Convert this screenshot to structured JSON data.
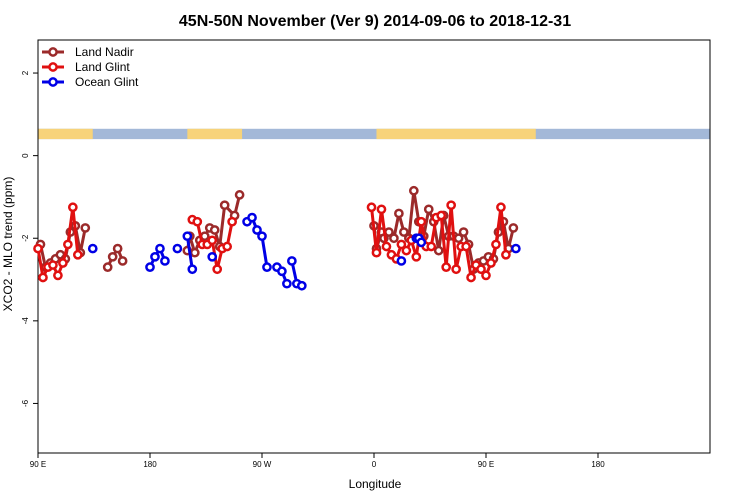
{
  "chart_data": {
    "type": "line",
    "title": "45N-50N November (Ver 9)   2014-09-06 to 2018-12-31",
    "xlabel": "Longitude",
    "ylabel": "XCO2 - MLO trend (ppm)",
    "xlim": [
      -90,
      180
    ],
    "ylim": [
      -7.2,
      2.8
    ],
    "x_ticks": [
      {
        "value": -90,
        "label": "90 E"
      },
      {
        "value": -45,
        "label": "180"
      },
      {
        "value": 0,
        "label": "90 W"
      },
      {
        "value": 45,
        "label": "0"
      },
      {
        "value": 90,
        "label": "90 E"
      },
      {
        "value": 135,
        "label": "180"
      }
    ],
    "y_ticks": [
      {
        "value": -6,
        "label": "-6"
      },
      {
        "value": -4,
        "label": "-4"
      },
      {
        "value": -2,
        "label": "-2"
      },
      {
        "value": 0,
        "label": "0"
      },
      {
        "value": 2,
        "label": "2"
      }
    ],
    "legend_position": "top-left",
    "map_strip": {
      "y_range": [
        0.4,
        0.65
      ],
      "ocean_color": "#a3b8d8",
      "land_color": "#f7d37a"
    },
    "series": [
      {
        "name": "Land Nadir",
        "color": "#9b2a2a",
        "segments": [
          [
            [
              -89,
              -2.15
            ],
            [
              -87,
              -2.7
            ],
            [
              -85,
              -2.6
            ],
            [
              -83,
              -2.5
            ],
            [
              -81,
              -2.4
            ],
            [
              -79,
              -2.5
            ],
            [
              -77,
              -1.85
            ],
            [
              -75,
              -1.7
            ],
            [
              -73,
              -2.35
            ],
            [
              -71,
              -1.75
            ]
          ],
          [
            [
              -62,
              -2.7
            ],
            [
              -60,
              -2.45
            ],
            [
              -58,
              -2.25
            ],
            [
              -56,
              -2.55
            ]
          ],
          [
            [
              -30,
              -2.3
            ],
            [
              -29,
              -1.95
            ],
            [
              -27,
              -2.35
            ],
            [
              -25,
              -2.05
            ],
            [
              -23,
              -1.95
            ],
            [
              -21,
              -1.75
            ],
            [
              -19,
              -1.8
            ],
            [
              -17,
              -2.2
            ],
            [
              -15,
              -1.2
            ],
            [
              -11,
              -1.45
            ],
            [
              -9,
              -0.95
            ]
          ],
          [
            [
              45,
              -1.7
            ],
            [
              46,
              -2.25
            ],
            [
              48,
              -1.85
            ],
            [
              49,
              -2.0
            ],
            [
              51,
              -1.85
            ],
            [
              53,
              -2.0
            ],
            [
              55,
              -1.4
            ],
            [
              57,
              -1.85
            ],
            [
              59,
              -2.0
            ],
            [
              61,
              -0.85
            ],
            [
              63,
              -1.6
            ],
            [
              65,
              -1.95
            ],
            [
              67,
              -1.3
            ],
            [
              69,
              -1.6
            ],
            [
              71,
              -2.3
            ],
            [
              73,
              -1.45
            ],
            [
              75,
              -1.95
            ],
            [
              77,
              -1.95
            ],
            [
              79,
              -2.0
            ],
            [
              81,
              -1.85
            ],
            [
              83,
              -2.15
            ],
            [
              85,
              -2.75
            ],
            [
              87,
              -2.6
            ],
            [
              89,
              -2.55
            ],
            [
              91,
              -2.45
            ],
            [
              93,
              -2.5
            ],
            [
              95,
              -1.85
            ],
            [
              97,
              -1.6
            ],
            [
              99,
              -2.25
            ],
            [
              101,
              -1.75
            ]
          ]
        ]
      },
      {
        "name": "Land Glint",
        "color": "#e01010",
        "segments": [
          [
            [
              -90,
              -2.25
            ],
            [
              -88,
              -2.95
            ],
            [
              -86,
              -2.7
            ],
            [
              -84,
              -2.65
            ],
            [
              -82,
              -2.9
            ],
            [
              -80,
              -2.6
            ],
            [
              -78,
              -2.15
            ],
            [
              -76,
              -1.25
            ],
            [
              -74,
              -2.4
            ]
          ],
          [
            [
              -28,
              -1.55
            ],
            [
              -26,
              -1.6
            ],
            [
              -24,
              -2.15
            ],
            [
              -22,
              -2.15
            ],
            [
              -20,
              -2.05
            ],
            [
              -18,
              -2.75
            ],
            [
              -16,
              -2.25
            ],
            [
              -14,
              -2.2
            ],
            [
              -12,
              -1.6
            ]
          ],
          [
            [
              44,
              -1.25
            ],
            [
              46,
              -2.35
            ],
            [
              48,
              -1.3
            ],
            [
              50,
              -2.2
            ],
            [
              52,
              -2.4
            ],
            [
              54,
              -2.5
            ],
            [
              56,
              -2.15
            ],
            [
              58,
              -2.3
            ],
            [
              60,
              -2.05
            ],
            [
              62,
              -2.45
            ],
            [
              64,
              -1.6
            ],
            [
              66,
              -2.2
            ],
            [
              68,
              -2.2
            ],
            [
              70,
              -1.5
            ],
            [
              72,
              -1.45
            ],
            [
              74,
              -2.7
            ],
            [
              76,
              -1.2
            ],
            [
              78,
              -2.75
            ],
            [
              80,
              -2.2
            ],
            [
              82,
              -2.2
            ],
            [
              84,
              -2.95
            ],
            [
              86,
              -2.65
            ],
            [
              88,
              -2.75
            ],
            [
              90,
              -2.9
            ],
            [
              92,
              -2.6
            ],
            [
              94,
              -2.15
            ],
            [
              96,
              -1.25
            ],
            [
              98,
              -2.4
            ]
          ]
        ]
      },
      {
        "name": "Ocean Glint",
        "color": "#0000e6",
        "segments": [
          [
            [
              -68,
              -2.25
            ]
          ],
          [
            [
              -45,
              -2.7
            ],
            [
              -43,
              -2.45
            ],
            [
              -41,
              -2.25
            ],
            [
              -39,
              -2.55
            ]
          ],
          [
            [
              -34,
              -2.25
            ]
          ],
          [
            [
              -30,
              -1.95
            ],
            [
              -28,
              -2.75
            ]
          ],
          [
            [
              -20,
              -2.45
            ]
          ],
          [
            [
              -6,
              -1.6
            ],
            [
              -4,
              -1.5
            ],
            [
              -2,
              -1.8
            ],
            [
              0,
              -1.95
            ],
            [
              2,
              -2.7
            ]
          ],
          [
            [
              6,
              -2.7
            ],
            [
              8,
              -2.8
            ],
            [
              10,
              -3.1
            ]
          ],
          [
            [
              12,
              -2.55
            ],
            [
              14,
              -3.1
            ]
          ],
          [
            [
              16,
              -3.15
            ]
          ],
          [
            [
              56,
              -2.55
            ]
          ],
          [
            [
              62,
              -2.0
            ],
            [
              63,
              -2.0
            ],
            [
              64,
              -2.1
            ]
          ],
          [
            [
              102,
              -2.25
            ]
          ]
        ]
      }
    ]
  }
}
